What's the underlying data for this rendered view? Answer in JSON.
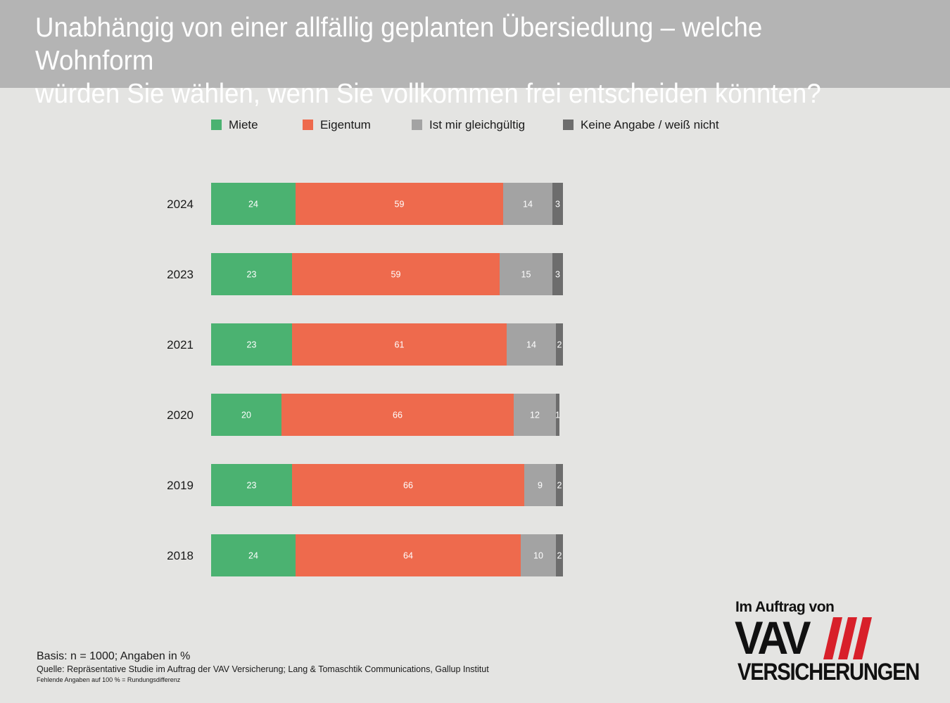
{
  "header": {
    "title_line1": "Unabhängig von einer allfällig geplanten Übersiedlung – welche Wohnform",
    "title_line2": "würden Sie wählen, wenn Sie vollkommen frei entscheiden könnten?"
  },
  "chart_data": {
    "type": "bar",
    "orientation": "horizontal",
    "stacked": true,
    "categories": [
      "2024",
      "2023",
      "2021",
      "2020",
      "2019",
      "2018"
    ],
    "series": [
      {
        "name": "Miete",
        "color": "#4bb271",
        "values": [
          24,
          23,
          23,
          20,
          23,
          24
        ]
      },
      {
        "name": "Eigentum",
        "color": "#ee6a4d",
        "values": [
          59,
          59,
          61,
          66,
          66,
          64
        ]
      },
      {
        "name": "Ist mir gleichgültig",
        "color": "#a3a3a3",
        "values": [
          14,
          15,
          14,
          12,
          9,
          10
        ]
      },
      {
        "name": "Keine Angabe / weiß nicht",
        "color": "#6d6d6d",
        "values": [
          3,
          3,
          2,
          1,
          2,
          2
        ]
      }
    ],
    "xlim": [
      0,
      100
    ],
    "unit": "%",
    "legend_position": "top",
    "grid": false
  },
  "footer": {
    "basis": "Basis: n = 1000; Angaben in %",
    "quelle": "Quelle: Repräsentative Studie im Auftrag der VAV Versicherung; Lang & Tomaschtik Communications, Gallup Institut",
    "fehlend": "Fehlende Angaben auf 100 % = Rundungsdifferenz"
  },
  "logo": {
    "caption": "Im Auftrag von",
    "mark": "VAV",
    "brand": "VERSICHERUNGEN",
    "stripe_color": "#d8202a"
  }
}
